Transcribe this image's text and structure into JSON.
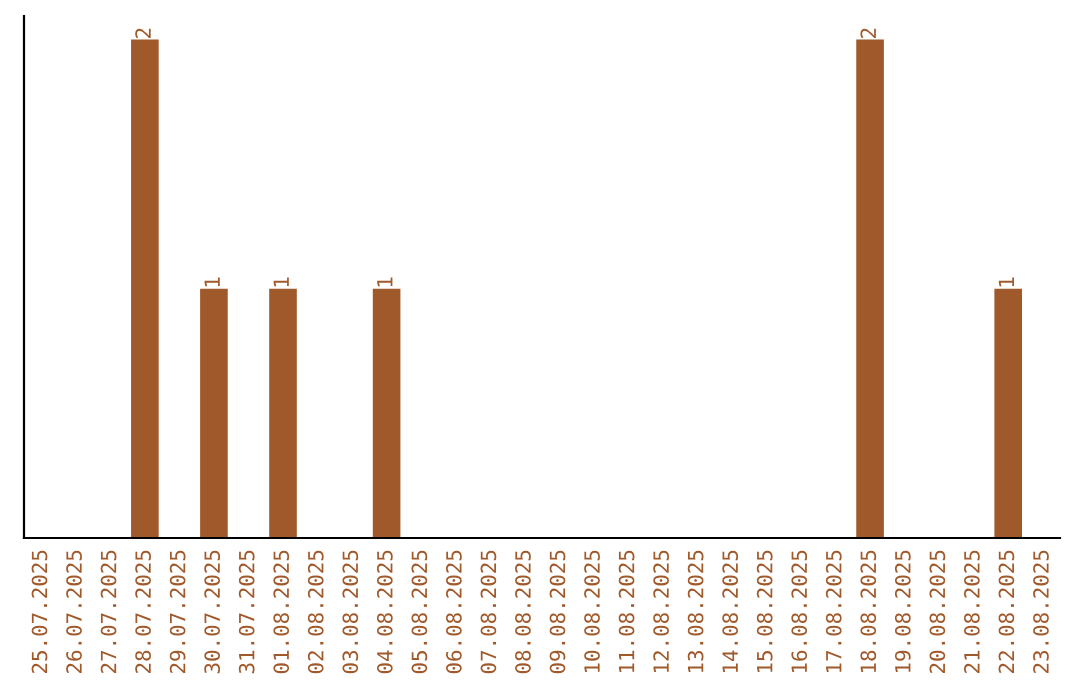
{
  "chart_data": {
    "type": "bar",
    "categories": [
      "25.07.2025",
      "26.07.2025",
      "27.07.2025",
      "28.07.2025",
      "29.07.2025",
      "30.07.2025",
      "31.07.2025",
      "01.08.2025",
      "02.08.2025",
      "03.08.2025",
      "04.08.2025",
      "05.08.2025",
      "06.08.2025",
      "07.08.2025",
      "08.08.2025",
      "09.08.2025",
      "10.08.2025",
      "11.08.2025",
      "12.08.2025",
      "13.08.2025",
      "14.08.2025",
      "15.08.2025",
      "16.08.2025",
      "17.08.2025",
      "18.08.2025",
      "19.08.2025",
      "20.08.2025",
      "21.08.2025",
      "22.08.2025",
      "23.08.2025"
    ],
    "values": [
      0,
      0,
      0,
      2,
      0,
      1,
      0,
      1,
      0,
      0,
      1,
      0,
      0,
      0,
      0,
      0,
      0,
      0,
      0,
      0,
      0,
      0,
      0,
      0,
      2,
      0,
      0,
      0,
      1,
      0
    ],
    "value_labels": [
      null,
      null,
      null,
      "2",
      null,
      "1",
      null,
      "1",
      null,
      null,
      "1",
      null,
      null,
      null,
      null,
      null,
      null,
      null,
      null,
      null,
      null,
      null,
      null,
      null,
      "2",
      null,
      null,
      null,
      "1",
      null
    ],
    "color": "#a0592a",
    "tick_labels": "x",
    "grid": false,
    "legend": false
  }
}
